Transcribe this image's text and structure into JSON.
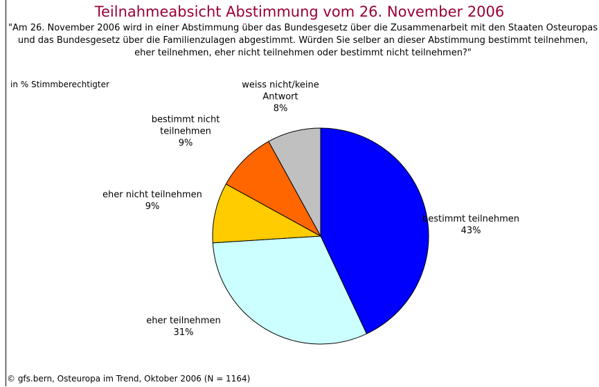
{
  "chart_data": {
    "type": "pie",
    "title": "Teilnahmeabsicht Abstimmung vom 26. November 2006",
    "subtitle": "\"Am 26. November 2006 wird in einer Abstimmung über das Bundesgesetz über die Zusammenarbeit mit den Staaten Osteuropas und das Bundesgesetz über die Familienzulagen abgestimmt. Würden Sie selber an dieser Abstimmung bestimmt teilnehmen, eher teilnehmen, eher nicht teilnehmen oder bestimmt nicht teilnehmen?\"",
    "unit_label": "in % Stimmberechtigter",
    "source": "© gfs.bern, Osteuropa im Trend, Oktober 2006 (N = 1164)",
    "categories": [
      "bestimmt teilnehmen",
      "eher teilnehmen",
      "eher nicht teilnehmen",
      "bestimmt nicht teilnehmen",
      "weiss nicht/keine Antwort"
    ],
    "values": [
      43,
      31,
      9,
      9,
      8
    ],
    "value_labels": [
      "43%",
      "31%",
      "9%",
      "9%",
      "8%"
    ],
    "colors": [
      "#0000ff",
      "#ccffff",
      "#ffcc00",
      "#ff6600",
      "#c0c0c0"
    ]
  }
}
